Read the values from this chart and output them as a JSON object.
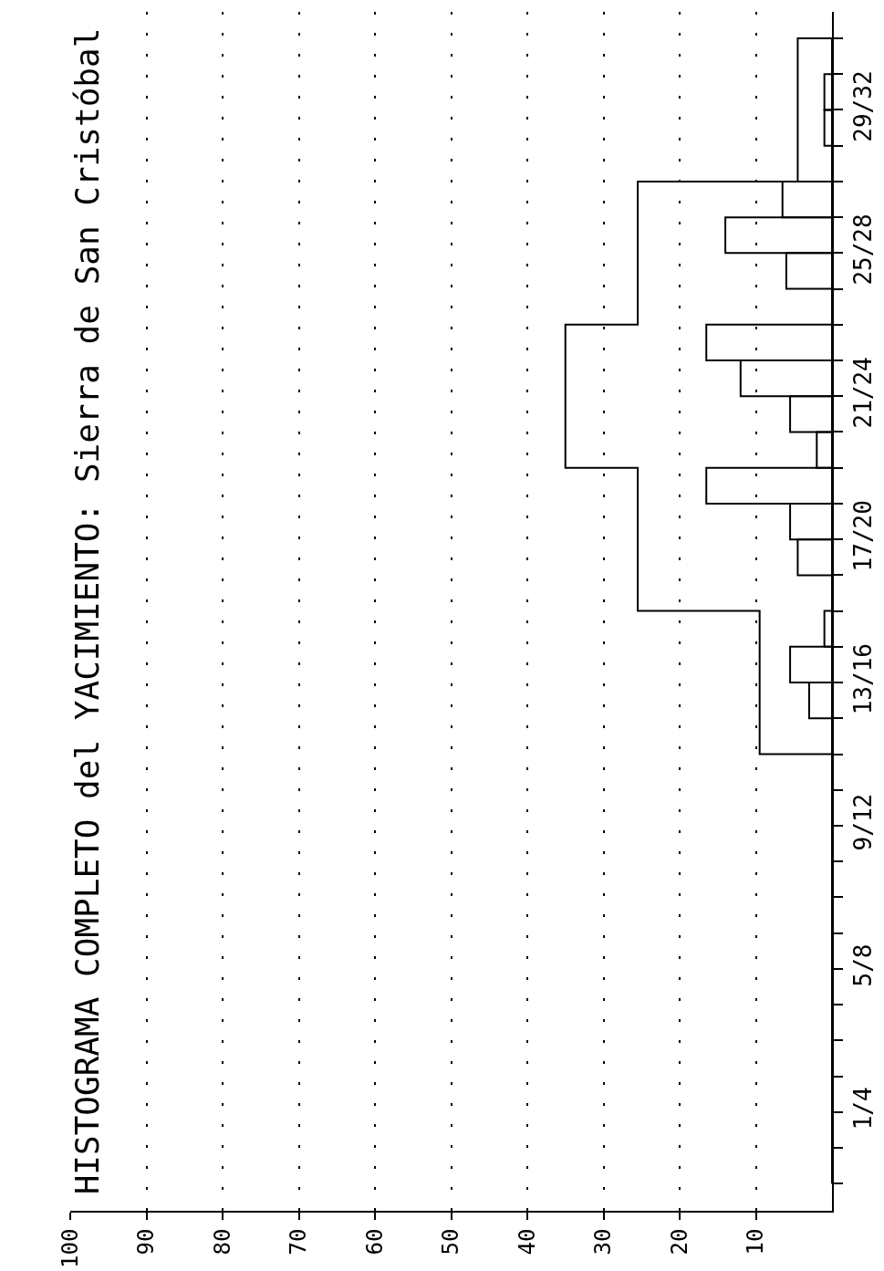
{
  "chart_data": {
    "type": "bar",
    "orientation": "horizontal",
    "title": "HISTOGRAMA COMPLETO del YACIMIENTO: Sierra de San Cristóbal",
    "categories": [
      null,
      "29/32",
      null,
      null,
      null,
      "25/28",
      null,
      null,
      null,
      "21/24",
      null,
      null,
      null,
      "17/20",
      null,
      null,
      null,
      "13/16",
      null,
      null,
      null,
      "9/12",
      null,
      null,
      null,
      "5/8",
      null,
      null,
      null,
      "1/4",
      null,
      null
    ],
    "xlim": [
      100,
      0
    ],
    "xticks": [
      10,
      20,
      30,
      40,
      50,
      60,
      70,
      80,
      90,
      100
    ],
    "grid": "x",
    "series": [
      {
        "color": "#000000",
        "values": [
          0,
          1,
          1,
          0,
          6.5,
          14,
          6,
          0,
          16.5,
          12,
          5.5,
          2,
          16.5,
          5.5,
          4.5,
          0,
          1,
          5.5,
          3,
          0,
          0,
          0,
          0,
          0,
          0,
          0,
          0,
          0,
          0,
          0,
          0,
          0
        ]
      },
      {
        "type": "step",
        "color": "#000000",
        "values": [
          4.5,
          4.5,
          4.5,
          4.5,
          25.5,
          25.5,
          25.5,
          25.5,
          35,
          35,
          35,
          35,
          25.5,
          25.5,
          25.5,
          25.5,
          9.5,
          9.5,
          9.5,
          9.5,
          0,
          0,
          0,
          0,
          0,
          0,
          0,
          0,
          0,
          0,
          0,
          0
        ]
      }
    ]
  }
}
